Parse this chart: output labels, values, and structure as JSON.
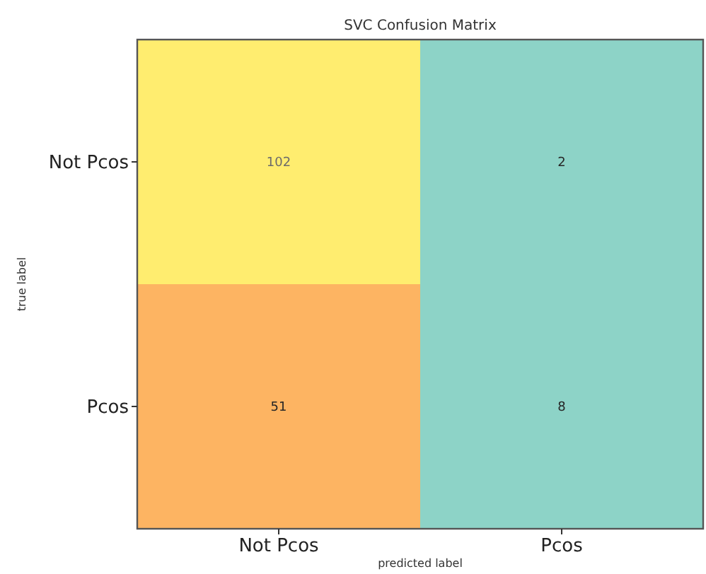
{
  "chart_data": {
    "type": "heatmap",
    "title": "SVC Confusion Matrix",
    "xlabel": "predicted label",
    "ylabel": "true label",
    "categories": [
      "Not Pcos",
      "Pcos"
    ],
    "y_categories": [
      "Not Pcos",
      "Pcos"
    ],
    "data_labels": true,
    "cells": [
      [
        102,
        2
      ],
      [
        51,
        8
      ]
    ]
  }
}
